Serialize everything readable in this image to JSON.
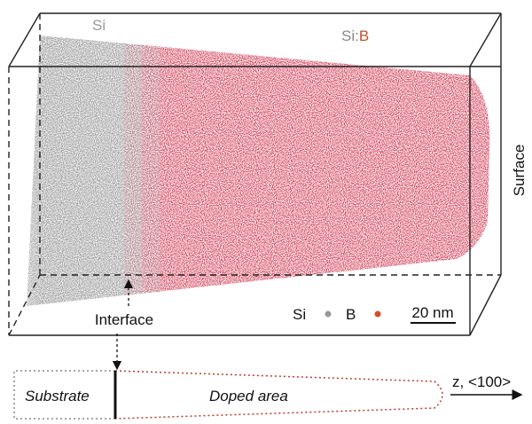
{
  "labels": {
    "si_region": "Si",
    "sib_prefix": "Si:",
    "sib_b": "B",
    "surface": "Surface",
    "interface": "Interface"
  },
  "legend": {
    "items": [
      {
        "label": "Si"
      },
      {
        "label": "B"
      }
    ],
    "scale_bar": "20 nm"
  },
  "schematic": {
    "substrate": "Substrate",
    "doped_area": "Doped area",
    "axis": "z, <100>"
  }
}
